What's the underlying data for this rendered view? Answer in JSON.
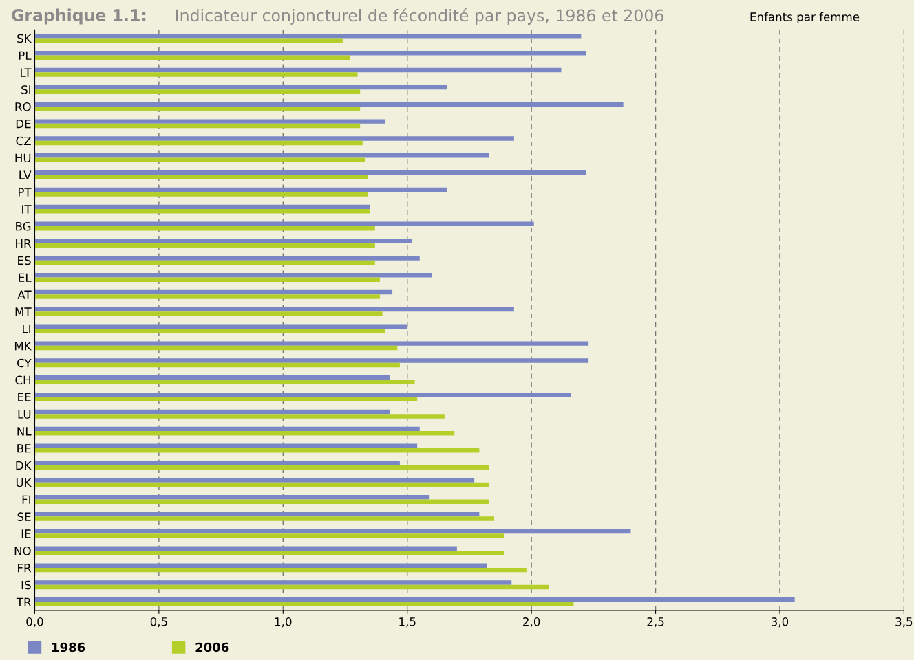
{
  "chart_data": {
    "type": "bar",
    "orientation": "horizontal",
    "title": "Graphique 1.1:",
    "subtitle": "Indicateur conjoncturel de fécondité par pays, 1986 et 2006",
    "annotations": [
      "Enfants par femme"
    ],
    "categories": [
      "SK",
      "PL",
      "LT",
      "SI",
      "RO",
      "DE",
      "CZ",
      "HU",
      "LV",
      "PT",
      "IT",
      "BG",
      "HR",
      "ES",
      "EL",
      "AT",
      "MT",
      "LI",
      "MK",
      "CY",
      "CH",
      "EE",
      "LU",
      "NL",
      "BE",
      "DK",
      "UK",
      "FI",
      "SE",
      "IE",
      "NO",
      "FR",
      "IS",
      "TR"
    ],
    "series": [
      {
        "name": "1986",
        "color": "#7b86c4",
        "values": [
          2.2,
          2.22,
          2.12,
          1.66,
          2.37,
          1.41,
          1.93,
          1.83,
          2.22,
          1.66,
          1.35,
          2.01,
          1.52,
          1.55,
          1.6,
          1.44,
          1.93,
          1.5,
          2.23,
          2.23,
          1.43,
          2.16,
          1.43,
          1.55,
          1.54,
          1.47,
          1.77,
          1.59,
          1.79,
          2.4,
          1.7,
          1.82,
          1.92,
          3.06
        ]
      },
      {
        "name": "2006",
        "color": "#b5cf2a",
        "values": [
          1.24,
          1.27,
          1.3,
          1.31,
          1.31,
          1.31,
          1.32,
          1.33,
          1.34,
          1.34,
          1.35,
          1.37,
          1.37,
          1.37,
          1.39,
          1.39,
          1.4,
          1.41,
          1.46,
          1.47,
          1.53,
          1.54,
          1.65,
          1.69,
          1.79,
          1.83,
          1.83,
          1.83,
          1.85,
          1.89,
          1.89,
          1.98,
          2.07,
          2.17
        ]
      }
    ],
    "xlim": [
      0,
      3.5
    ],
    "xticks": [
      {
        "value": 0,
        "label": "0,0"
      },
      {
        "value": 0.5,
        "label": "0,5"
      },
      {
        "value": 1,
        "label": "1,0"
      },
      {
        "value": 1.5,
        "label": "1,5"
      },
      {
        "value": 2,
        "label": "2,0"
      },
      {
        "value": 2.5,
        "label": "2,5"
      },
      {
        "value": 3,
        "label": "3,0"
      },
      {
        "value": 3.5,
        "label": "3,5"
      }
    ],
    "grid": "x",
    "legend": "bottom left"
  }
}
